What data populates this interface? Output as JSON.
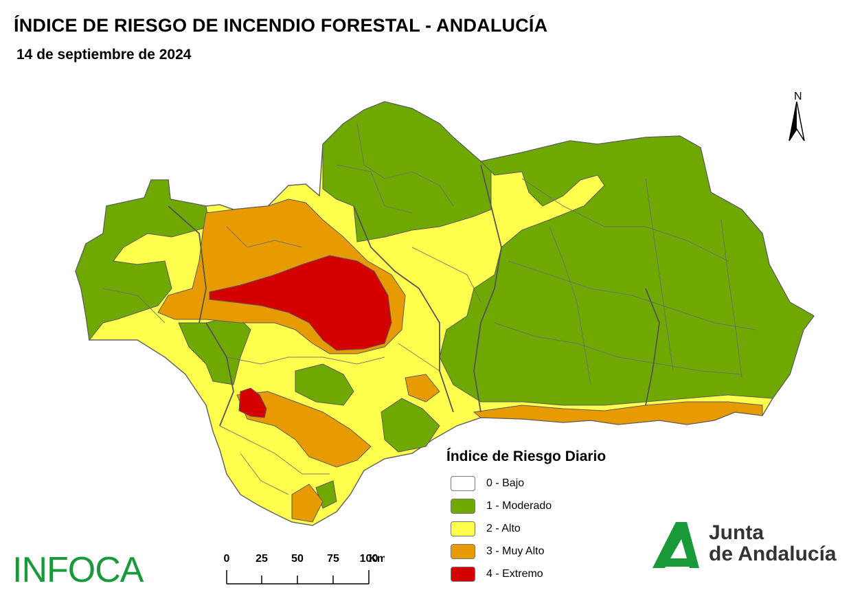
{
  "header": {
    "title": "ÍNDICE DE RIESGO DE INCENDIO FORESTAL - ANDALUCÍA",
    "date": "14 de septiembre de 2024"
  },
  "north_arrow": {
    "label": "N"
  },
  "legend": {
    "title": "Índice de Riesgo Diario",
    "items": [
      {
        "label": "0 - Bajo",
        "color": "#ffffff"
      },
      {
        "label": "1 - Moderado",
        "color": "#6fa800"
      },
      {
        "label": "2 - Alto",
        "color": "#ffff4d"
      },
      {
        "label": "3 - Muy Alto",
        "color": "#e89b00"
      },
      {
        "label": "4 - Extremo",
        "color": "#d40000"
      }
    ]
  },
  "scale_bar": {
    "ticks": [
      "0",
      "25",
      "50",
      "75",
      "100"
    ],
    "unit": "Km"
  },
  "logos": {
    "infoca": "INFOCA",
    "junta_line1": "Junta",
    "junta_line2": "de Andalucía"
  },
  "colors": {
    "moderado": "#6fa800",
    "alto": "#ffff4d",
    "muy_alto": "#e89b00",
    "extremo": "#d40000",
    "boundaries": "#6b6b6b",
    "brand_green": "#199a3a"
  }
}
